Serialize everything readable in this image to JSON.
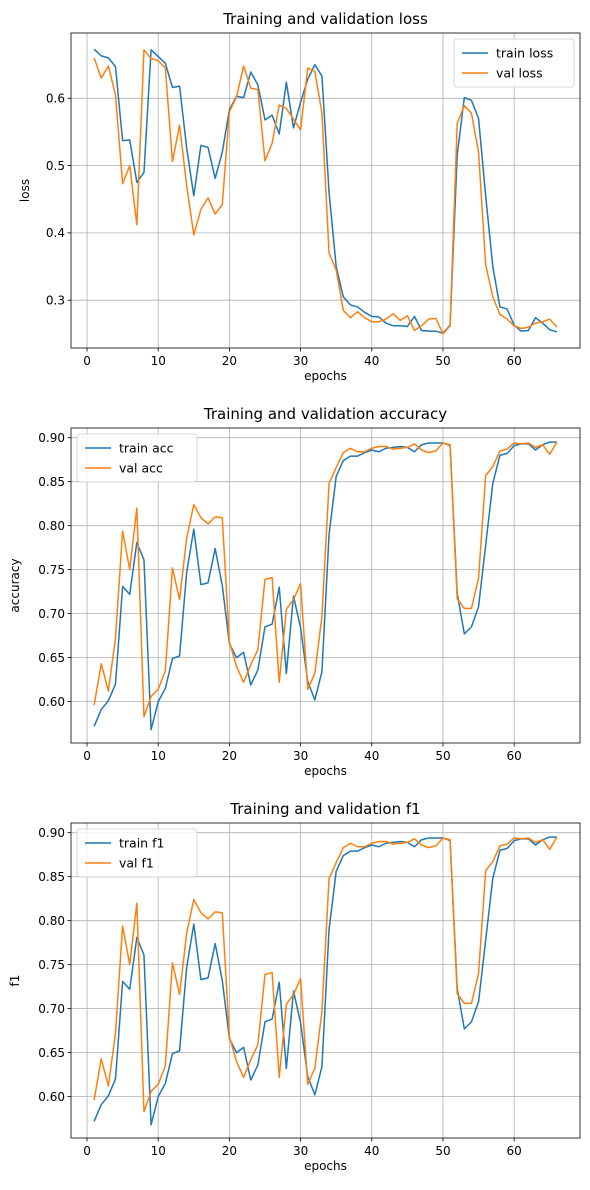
{
  "colors": {
    "train": "#1f77b4",
    "val": "#ff7f0e",
    "grid": "#b0b0b0"
  },
  "chart_data": [
    {
      "type": "line",
      "title": "Training and validation loss",
      "xlabel": "epochs",
      "ylabel": "loss",
      "xlim": [
        -2.25,
        69.25
      ],
      "ylim": [
        0.229,
        0.697
      ],
      "xticks": [
        0,
        10,
        20,
        30,
        40,
        50,
        60
      ],
      "yticks": [
        0.3,
        0.4,
        0.5,
        0.6
      ],
      "grid": true,
      "legend_position": "top-right",
      "x": [
        1,
        2,
        3,
        4,
        5,
        6,
        7,
        8,
        9,
        10,
        11,
        12,
        13,
        14,
        15,
        16,
        17,
        18,
        19,
        20,
        21,
        22,
        23,
        24,
        25,
        26,
        27,
        28,
        29,
        30,
        31,
        32,
        33,
        34,
        35,
        36,
        37,
        38,
        39,
        40,
        41,
        42,
        43,
        44,
        45,
        46,
        47,
        48,
        49,
        50,
        51,
        52,
        53,
        54,
        55,
        56,
        57,
        58,
        59,
        60,
        61,
        62,
        63,
        64,
        65,
        66
      ],
      "series": [
        {
          "name": "train loss",
          "values": [
            0.673,
            0.663,
            0.66,
            0.647,
            0.537,
            0.538,
            0.475,
            0.49,
            0.672,
            0.662,
            0.652,
            0.616,
            0.618,
            0.526,
            0.455,
            0.53,
            0.527,
            0.481,
            0.52,
            0.583,
            0.603,
            0.601,
            0.639,
            0.62,
            0.568,
            0.575,
            0.547,
            0.624,
            0.556,
            0.594,
            0.628,
            0.65,
            0.633,
            0.46,
            0.35,
            0.305,
            0.293,
            0.29,
            0.282,
            0.276,
            0.275,
            0.266,
            0.262,
            0.262,
            0.261,
            0.276,
            0.255,
            0.254,
            0.254,
            0.251,
            0.263,
            0.516,
            0.601,
            0.597,
            0.57,
            0.455,
            0.35,
            0.29,
            0.287,
            0.263,
            0.254,
            0.255,
            0.274,
            0.266,
            0.256,
            0.253
          ]
        },
        {
          "name": "val loss",
          "values": [
            0.66,
            0.63,
            0.648,
            0.605,
            0.473,
            0.5,
            0.412,
            0.672,
            0.659,
            0.656,
            0.645,
            0.506,
            0.56,
            0.47,
            0.397,
            0.435,
            0.452,
            0.428,
            0.442,
            0.58,
            0.602,
            0.648,
            0.615,
            0.613,
            0.507,
            0.533,
            0.59,
            0.585,
            0.569,
            0.553,
            0.645,
            0.64,
            0.578,
            0.37,
            0.345,
            0.285,
            0.274,
            0.283,
            0.274,
            0.268,
            0.268,
            0.272,
            0.28,
            0.27,
            0.277,
            0.255,
            0.262,
            0.272,
            0.273,
            0.25,
            0.262,
            0.563,
            0.589,
            0.578,
            0.52,
            0.353,
            0.305,
            0.279,
            0.272,
            0.262,
            0.258,
            0.26,
            0.266,
            0.268,
            0.272,
            0.26
          ]
        }
      ]
    },
    {
      "type": "line",
      "title": "Training and validation accuracy",
      "xlabel": "epochs",
      "ylabel": "accuracy",
      "xlim": [
        -2.25,
        69.25
      ],
      "ylim": [
        0.553,
        0.911
      ],
      "xticks": [
        0,
        10,
        20,
        30,
        40,
        50,
        60
      ],
      "yticks": [
        0.6,
        0.65,
        0.7,
        0.75,
        0.8,
        0.85,
        0.9
      ],
      "grid": true,
      "legend_position": "top-left",
      "x": [
        1,
        2,
        3,
        4,
        5,
        6,
        7,
        8,
        9,
        10,
        11,
        12,
        13,
        14,
        15,
        16,
        17,
        18,
        19,
        20,
        21,
        22,
        23,
        24,
        25,
        26,
        27,
        28,
        29,
        30,
        31,
        32,
        33,
        34,
        35,
        36,
        37,
        38,
        39,
        40,
        41,
        42,
        43,
        44,
        45,
        46,
        47,
        48,
        49,
        50,
        51,
        52,
        53,
        54,
        55,
        56,
        57,
        58,
        59,
        60,
        61,
        62,
        63,
        64,
        65,
        66
      ],
      "series": [
        {
          "name": "train acc",
          "values": [
            0.572,
            0.591,
            0.601,
            0.62,
            0.731,
            0.722,
            0.781,
            0.761,
            0.568,
            0.6,
            0.615,
            0.649,
            0.652,
            0.747,
            0.796,
            0.733,
            0.735,
            0.774,
            0.732,
            0.666,
            0.65,
            0.656,
            0.619,
            0.636,
            0.685,
            0.688,
            0.73,
            0.632,
            0.72,
            0.684,
            0.623,
            0.602,
            0.634,
            0.79,
            0.856,
            0.874,
            0.879,
            0.879,
            0.883,
            0.886,
            0.884,
            0.888,
            0.889,
            0.89,
            0.889,
            0.884,
            0.892,
            0.894,
            0.894,
            0.894,
            0.891,
            0.723,
            0.677,
            0.685,
            0.708,
            0.778,
            0.848,
            0.88,
            0.882,
            0.891,
            0.893,
            0.893,
            0.886,
            0.892,
            0.895,
            0.895
          ]
        },
        {
          "name": "val acc",
          "values": [
            0.596,
            0.643,
            0.612,
            0.672,
            0.794,
            0.75,
            0.82,
            0.583,
            0.606,
            0.614,
            0.635,
            0.752,
            0.716,
            0.786,
            0.824,
            0.809,
            0.802,
            0.81,
            0.809,
            0.668,
            0.64,
            0.622,
            0.642,
            0.659,
            0.739,
            0.741,
            0.622,
            0.705,
            0.716,
            0.734,
            0.614,
            0.632,
            0.697,
            0.848,
            0.866,
            0.883,
            0.888,
            0.884,
            0.884,
            0.888,
            0.89,
            0.89,
            0.887,
            0.888,
            0.889,
            0.893,
            0.886,
            0.883,
            0.885,
            0.894,
            0.892,
            0.717,
            0.706,
            0.706,
            0.74,
            0.857,
            0.867,
            0.885,
            0.887,
            0.894,
            0.893,
            0.894,
            0.889,
            0.892,
            0.881,
            0.895
          ]
        }
      ]
    },
    {
      "type": "line",
      "title": "Training and validation f1",
      "xlabel": "epochs",
      "ylabel": "f1",
      "xlim": [
        -2.25,
        69.25
      ],
      "ylim": [
        0.553,
        0.911
      ],
      "xticks": [
        0,
        10,
        20,
        30,
        40,
        50,
        60
      ],
      "yticks": [
        0.6,
        0.65,
        0.7,
        0.75,
        0.8,
        0.85,
        0.9
      ],
      "grid": true,
      "legend_position": "top-left",
      "x": [
        1,
        2,
        3,
        4,
        5,
        6,
        7,
        8,
        9,
        10,
        11,
        12,
        13,
        14,
        15,
        16,
        17,
        18,
        19,
        20,
        21,
        22,
        23,
        24,
        25,
        26,
        27,
        28,
        29,
        30,
        31,
        32,
        33,
        34,
        35,
        36,
        37,
        38,
        39,
        40,
        41,
        42,
        43,
        44,
        45,
        46,
        47,
        48,
        49,
        50,
        51,
        52,
        53,
        54,
        55,
        56,
        57,
        58,
        59,
        60,
        61,
        62,
        63,
        64,
        65,
        66
      ],
      "series": [
        {
          "name": "train f1",
          "values": [
            0.572,
            0.591,
            0.601,
            0.62,
            0.731,
            0.722,
            0.781,
            0.761,
            0.568,
            0.6,
            0.615,
            0.649,
            0.652,
            0.747,
            0.796,
            0.733,
            0.735,
            0.774,
            0.732,
            0.666,
            0.65,
            0.656,
            0.619,
            0.636,
            0.685,
            0.688,
            0.73,
            0.632,
            0.72,
            0.684,
            0.623,
            0.602,
            0.634,
            0.79,
            0.856,
            0.874,
            0.879,
            0.879,
            0.883,
            0.886,
            0.884,
            0.888,
            0.889,
            0.89,
            0.889,
            0.884,
            0.892,
            0.894,
            0.894,
            0.894,
            0.891,
            0.723,
            0.677,
            0.685,
            0.708,
            0.778,
            0.848,
            0.88,
            0.882,
            0.891,
            0.893,
            0.893,
            0.886,
            0.892,
            0.895,
            0.895
          ]
        },
        {
          "name": "val f1",
          "values": [
            0.596,
            0.643,
            0.612,
            0.672,
            0.794,
            0.75,
            0.82,
            0.583,
            0.606,
            0.614,
            0.635,
            0.752,
            0.716,
            0.786,
            0.824,
            0.809,
            0.802,
            0.81,
            0.809,
            0.668,
            0.64,
            0.622,
            0.642,
            0.659,
            0.739,
            0.741,
            0.622,
            0.705,
            0.716,
            0.734,
            0.614,
            0.632,
            0.697,
            0.848,
            0.866,
            0.883,
            0.888,
            0.884,
            0.884,
            0.888,
            0.89,
            0.89,
            0.887,
            0.888,
            0.889,
            0.893,
            0.886,
            0.883,
            0.885,
            0.894,
            0.892,
            0.717,
            0.706,
            0.706,
            0.74,
            0.857,
            0.867,
            0.885,
            0.887,
            0.894,
            0.893,
            0.894,
            0.889,
            0.892,
            0.881,
            0.895
          ]
        }
      ]
    }
  ]
}
